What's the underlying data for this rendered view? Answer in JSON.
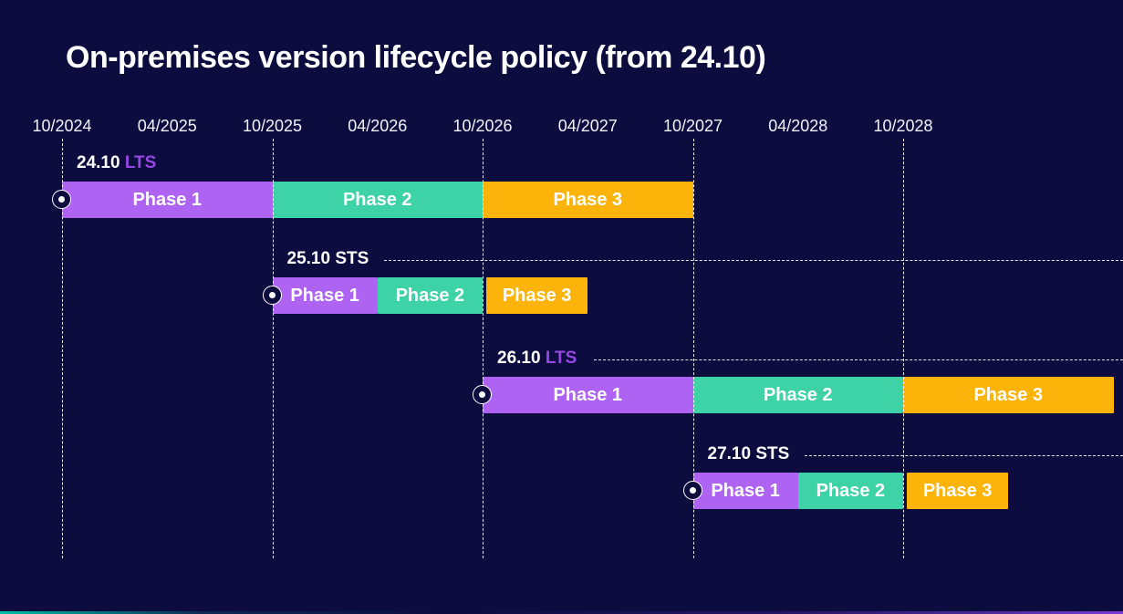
{
  "title": "On-premises version lifecycle policy (from 24.10)",
  "colors": {
    "background": "#0C0C3E",
    "text": "#FFFFFF",
    "lts_tag": "#9747E6",
    "phase1": "#AE63F2",
    "phase2": "#3DD3A6",
    "phase3": "#FCB40A",
    "grid": "#FFFFFF",
    "footer_gradient_left": "#00BFA5",
    "footer_gradient_right": "#7A3BD6"
  },
  "chart_data": {
    "type": "gantt",
    "title": "On-premises version lifecycle policy (from 24.10)",
    "x_axis": {
      "tick_labels": [
        "10/2024",
        "04/2025",
        "10/2025",
        "04/2026",
        "10/2026",
        "04/2027",
        "10/2027",
        "04/2028",
        "10/2028"
      ],
      "tick_interval": "6 months",
      "gridline_ticks": [
        "10/2024",
        "10/2025",
        "10/2026",
        "10/2027",
        "10/2028"
      ],
      "visible_range_start": "10/2024",
      "visible_range_end": "10/2029"
    },
    "legend": null,
    "phase_color_keys": [
      "phase1",
      "phase2",
      "phase3"
    ],
    "releases": [
      {
        "name": "24.10",
        "type": "LTS",
        "dashed_guide": false,
        "phases": [
          {
            "label": "Phase 1",
            "start": "10/2024",
            "end": "10/2025"
          },
          {
            "label": "Phase 2",
            "start": "10/2025",
            "end": "10/2026"
          },
          {
            "label": "Phase 3",
            "start": "10/2026",
            "end": "10/2027"
          }
        ]
      },
      {
        "name": "25.10",
        "type": "STS",
        "dashed_guide": true,
        "phases": [
          {
            "label": "Phase 1",
            "start": "10/2025",
            "end": "04/2026"
          },
          {
            "label": "Phase 2",
            "start": "04/2026",
            "end": "10/2026"
          },
          {
            "label": "Phase 3",
            "start": "10/2026",
            "end": "04/2027"
          }
        ]
      },
      {
        "name": "26.10",
        "type": "LTS",
        "dashed_guide": true,
        "phases": [
          {
            "label": "Phase 1",
            "start": "10/2026",
            "end": "10/2027"
          },
          {
            "label": "Phase 2",
            "start": "10/2027",
            "end": "10/2028"
          },
          {
            "label": "Phase 3",
            "start": "10/2028",
            "end": "10/2029"
          }
        ]
      },
      {
        "name": "27.10",
        "type": "STS",
        "dashed_guide": true,
        "phases": [
          {
            "label": "Phase 1",
            "start": "10/2027",
            "end": "04/2028"
          },
          {
            "label": "Phase 2",
            "start": "04/2028",
            "end": "10/2028"
          },
          {
            "label": "Phase 3",
            "start": "10/2028",
            "end": "04/2029"
          }
        ]
      }
    ]
  }
}
